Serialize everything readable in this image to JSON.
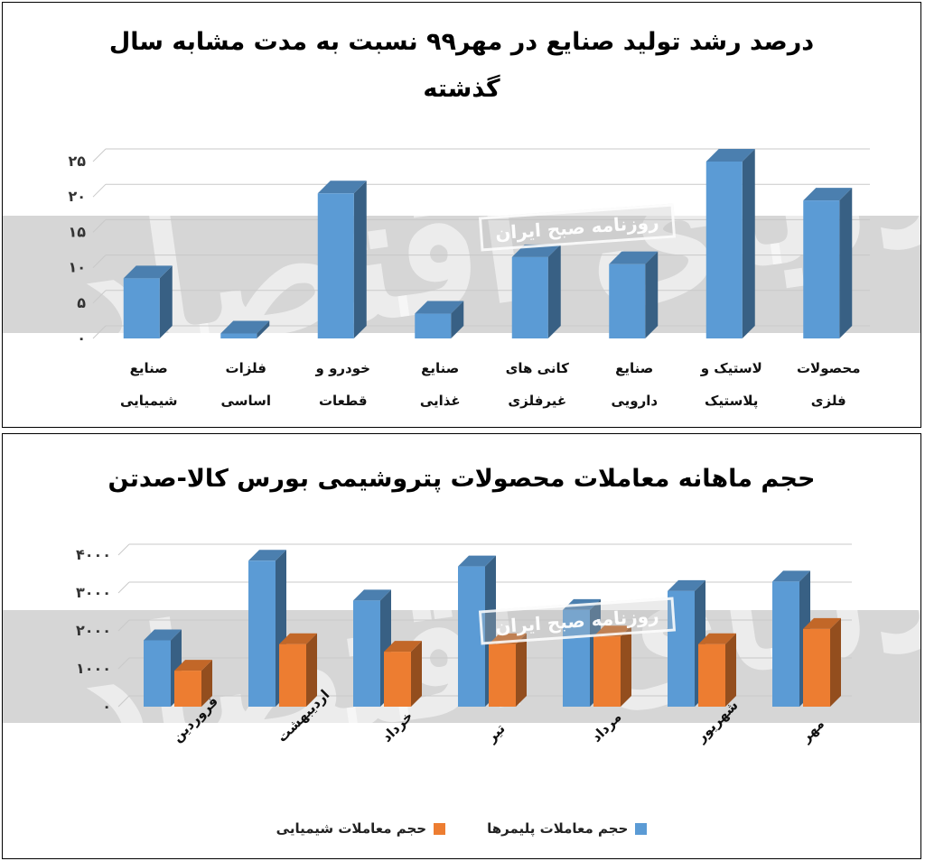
{
  "charts": [
    {
      "title": "درصد رشد تولید صنایع در مهر۹۹ نسبت به مدت مشابه سال گذشته",
      "watermark": {
        "box": "روزنامه صبح ایران",
        "script": "دنیای اقتصاد"
      },
      "chart_data": {
        "type": "bar",
        "categories": [
          [
            "صنایع",
            "شیمیایی"
          ],
          [
            "فلزات",
            "اساسی"
          ],
          [
            "خودرو و",
            "قطعات"
          ],
          [
            "صنایع",
            "غذایی"
          ],
          [
            "کانی های",
            "غیرفلزی"
          ],
          [
            "صنایع",
            "دارویی"
          ],
          [
            "لاستیک و",
            "پلاستیک"
          ],
          [
            "محصولات",
            "فلزی"
          ]
        ],
        "series": [
          {
            "values": [
              8.5,
              0.7,
              20.5,
              3.5,
              11.5,
              10.5,
              25.0,
              19.5
            ],
            "color": "#5b9bd5"
          }
        ],
        "ylim": [
          0,
          25
        ],
        "yticks": [
          "۰",
          "۵",
          "۱۰",
          "۱۵",
          "۲۰",
          "۲۵"
        ],
        "grid": true
      }
    },
    {
      "title": "حجم ماهانه معاملات محصولات پتروشیمی بورس کالا-صدتن",
      "watermark": {
        "box": "روزنامه صبح ایران",
        "script": "دنیای اقتصاد"
      },
      "chart_data": {
        "type": "bar",
        "categories": [
          "فروردین",
          "اردیبهشت",
          "خرداد",
          "تیر",
          "مرداد",
          "شهریور",
          "مهر"
        ],
        "series": [
          {
            "name": "حجم معاملات پلیمرها",
            "values": [
              1750,
              3850,
              2800,
              3700,
              2550,
              3050,
              3300
            ],
            "color": "#5b9bd5"
          },
          {
            "name": "حجم معاملات شیمیایی",
            "values": [
              950,
              1650,
              1450,
              1650,
              1850,
              1650,
              2050
            ],
            "color": "#ed7d31"
          }
        ],
        "ylim": [
          0,
          4000
        ],
        "yticks": [
          "۰",
          "۱۰۰۰",
          "۲۰۰۰",
          "۳۰۰۰",
          "۴۰۰۰"
        ],
        "grid": true,
        "legend": "bottom"
      }
    }
  ]
}
